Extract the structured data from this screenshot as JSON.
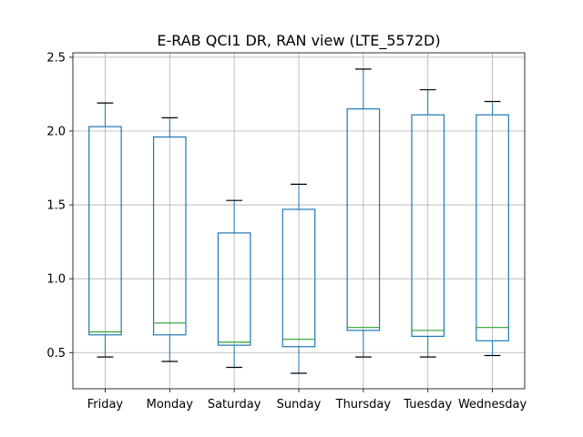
{
  "chart_data": {
    "type": "box",
    "title": "E-RAB QCI1 DR, RAN view (LTE_5572D)",
    "xlabel": "",
    "ylabel": "",
    "ylim": [
      0.255,
      2.53
    ],
    "yticks": [
      0.5,
      1.0,
      1.5,
      2.0,
      2.5
    ],
    "ytick_labels": [
      "0.5",
      "1.0",
      "1.5",
      "2.0",
      "2.5"
    ],
    "grid": true,
    "categories": [
      "Friday",
      "Monday",
      "Saturday",
      "Sunday",
      "Thursday",
      "Tuesday",
      "Wednesday"
    ],
    "boxes": [
      {
        "category": "Friday",
        "whisker_low": 0.47,
        "q1": 0.62,
        "median": 0.64,
        "q3": 2.03,
        "whisker_high": 2.19
      },
      {
        "category": "Monday",
        "whisker_low": 0.44,
        "q1": 0.62,
        "median": 0.7,
        "q3": 1.96,
        "whisker_high": 2.09
      },
      {
        "category": "Saturday",
        "whisker_low": 0.4,
        "q1": 0.55,
        "median": 0.57,
        "q3": 1.31,
        "whisker_high": 1.53
      },
      {
        "category": "Sunday",
        "whisker_low": 0.36,
        "q1": 0.54,
        "median": 0.59,
        "q3": 1.47,
        "whisker_high": 1.64
      },
      {
        "category": "Thursday",
        "whisker_low": 0.47,
        "q1": 0.65,
        "median": 0.67,
        "q3": 2.15,
        "whisker_high": 2.42
      },
      {
        "category": "Tuesday",
        "whisker_low": 0.47,
        "q1": 0.61,
        "median": 0.65,
        "q3": 2.11,
        "whisker_high": 2.28
      },
      {
        "category": "Wednesday",
        "whisker_low": 0.48,
        "q1": 0.58,
        "median": 0.67,
        "q3": 2.11,
        "whisker_high": 2.2
      }
    ],
    "colors": {
      "box": "#1f77b4",
      "median": "#2ca02c",
      "whisker_cap": "#000000",
      "grid": "#b0b0b0"
    }
  }
}
